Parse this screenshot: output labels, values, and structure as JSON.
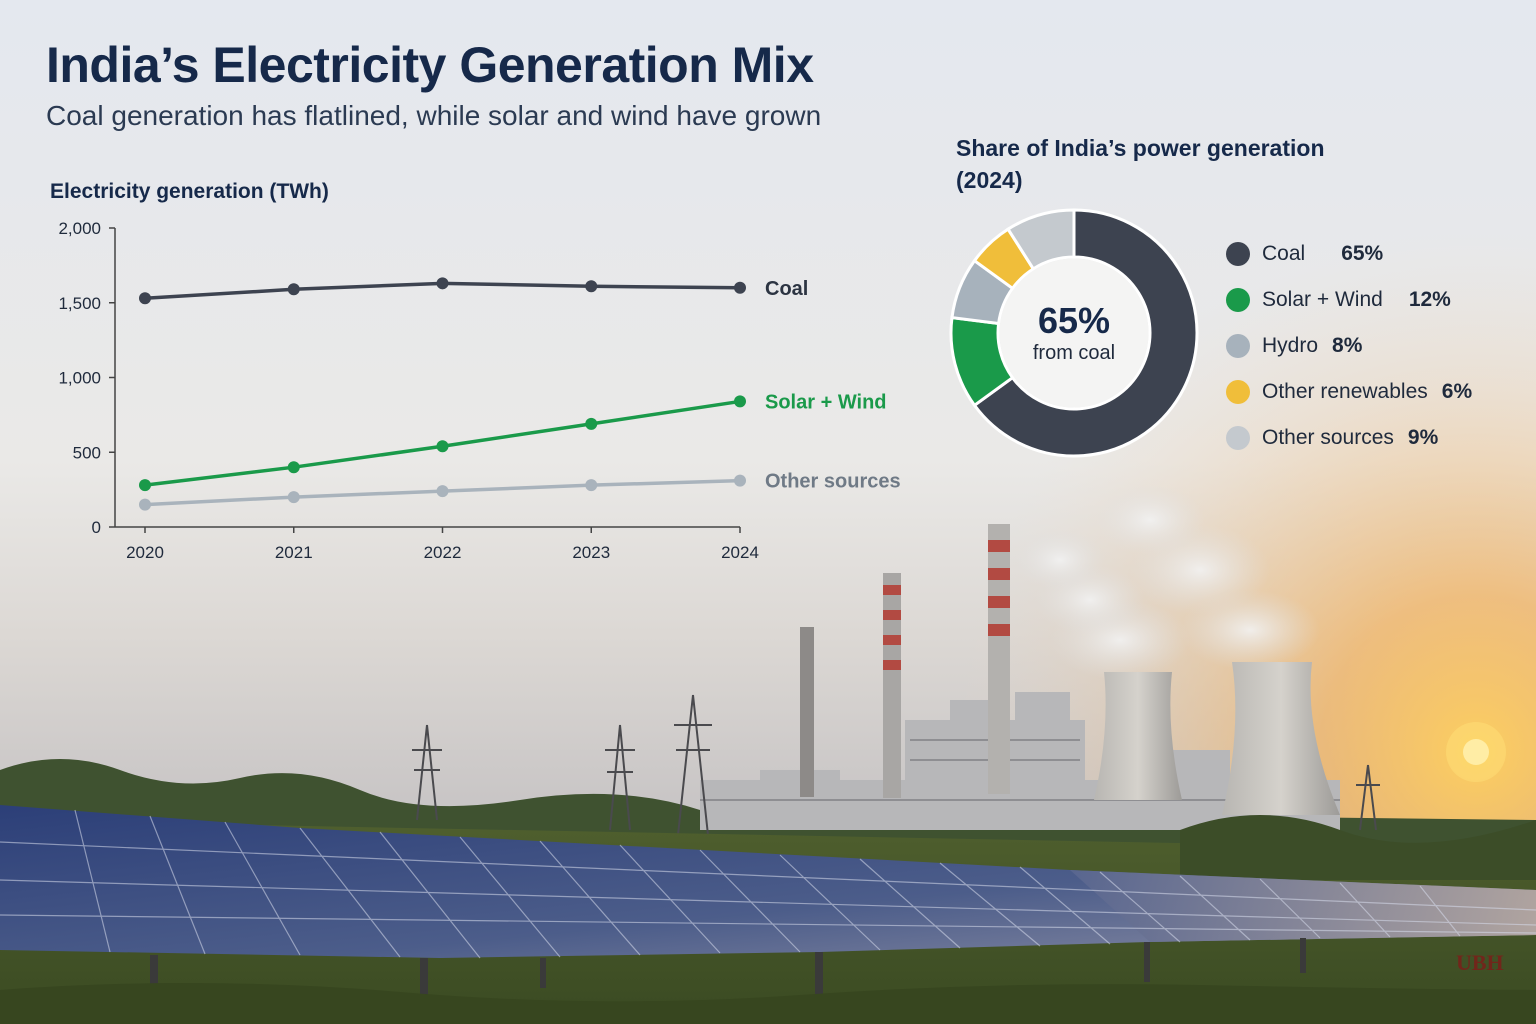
{
  "header": {
    "title": "India’s Electricity Generation Mix",
    "subtitle": "Coal generation has flatlined, while solar and wind have grown"
  },
  "colors": {
    "coal": "#3d4350",
    "solar_wind": "#1a9a4a",
    "hydro": "#a7b2bc",
    "other_renewables": "#f0be3a",
    "other_sources": "#c4c9ce",
    "title": "#16294a"
  },
  "chart_data": [
    {
      "type": "line",
      "title": "Electricity generation (TWh)",
      "x": [
        "2020",
        "2021",
        "2022",
        "2023",
        "2024"
      ],
      "ylim": [
        0,
        2000
      ],
      "yticks": [
        "0",
        "500",
        "1,000",
        "1,500",
        "2,000"
      ],
      "yticks_values": [
        0,
        500,
        1000,
        1500,
        2000
      ],
      "grid": false,
      "series": [
        {
          "name": "Coal",
          "values": [
            1530,
            1590,
            1630,
            1610,
            1600
          ],
          "color": "#3d4350"
        },
        {
          "name": "Solar + Wind",
          "values": [
            280,
            400,
            540,
            690,
            840
          ],
          "color": "#1a9a4a"
        },
        {
          "name": "Other sources",
          "values": [
            150,
            200,
            240,
            280,
            310
          ],
          "color": "#a9b3bc"
        }
      ]
    },
    {
      "type": "pie",
      "title": "Share of India’s power generation (2024)",
      "center_value": "65%",
      "center_label": "from coal",
      "slices": [
        {
          "name": "Coal",
          "label": "65%",
          "value": 65,
          "color": "#3d4350"
        },
        {
          "name": "Solar + Wind",
          "label": "12%",
          "value": 12,
          "color": "#1a9a4a"
        },
        {
          "name": "Hydro",
          "label": "8%",
          "value": 8,
          "color": "#a7b2bc"
        },
        {
          "name": "Other renewables",
          "label": "6%",
          "value": 6,
          "color": "#f0be3a"
        },
        {
          "name": "Other sources",
          "label": "9%",
          "value": 9,
          "color": "#c4c9ce"
        }
      ]
    }
  ],
  "watermark": "UBH"
}
